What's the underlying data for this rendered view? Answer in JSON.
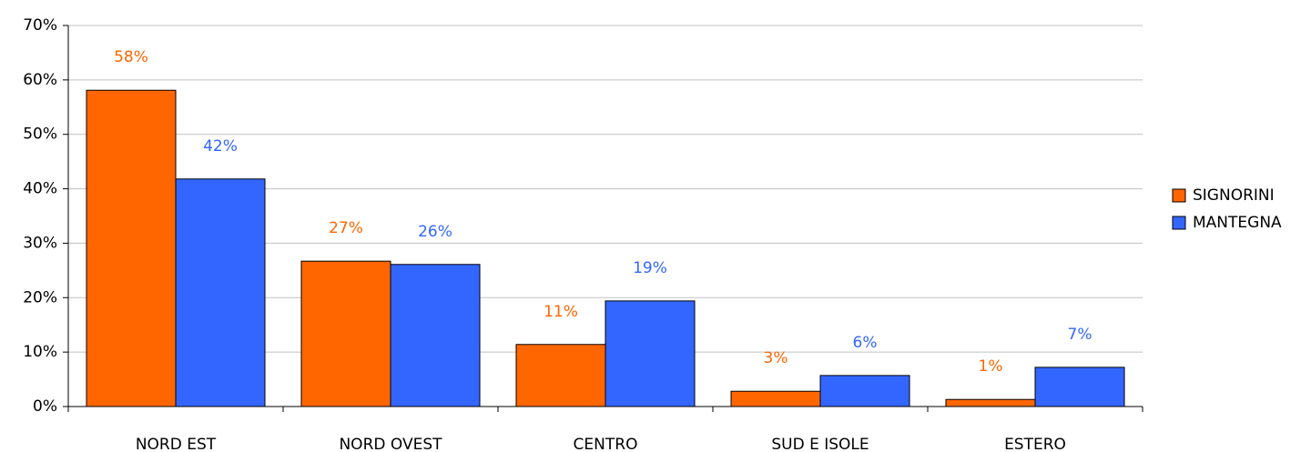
{
  "chart_data": {
    "type": "bar",
    "categories": [
      "NORD EST",
      "NORD OVEST",
      "CENTRO",
      "SUD E ISOLE",
      "ESTERO"
    ],
    "series": [
      {
        "name": "SIGNORINI",
        "color": "#ff6600",
        "values": [
          58.1,
          26.7,
          11.4,
          2.8,
          1.3
        ],
        "value_labels": [
          "58%",
          "27%",
          "11%",
          "3%",
          "1%"
        ]
      },
      {
        "name": "MANTEGNA",
        "color": "#3366ff",
        "values": [
          41.8,
          26.1,
          19.4,
          5.7,
          7.2
        ],
        "value_labels": [
          "42%",
          "26%",
          "19%",
          "6%",
          "7%"
        ]
      }
    ],
    "ylim": [
      0,
      70
    ],
    "yticks": [
      {
        "value": 0,
        "label": "0%"
      },
      {
        "value": 10,
        "label": "10%"
      },
      {
        "value": 20,
        "label": "20%"
      },
      {
        "value": 30,
        "label": "30%"
      },
      {
        "value": 40,
        "label": "40%"
      },
      {
        "value": 50,
        "label": "50%"
      },
      {
        "value": 60,
        "label": "60%"
      },
      {
        "value": 70,
        "label": "70%"
      }
    ],
    "grid": true,
    "legend": "right"
  }
}
